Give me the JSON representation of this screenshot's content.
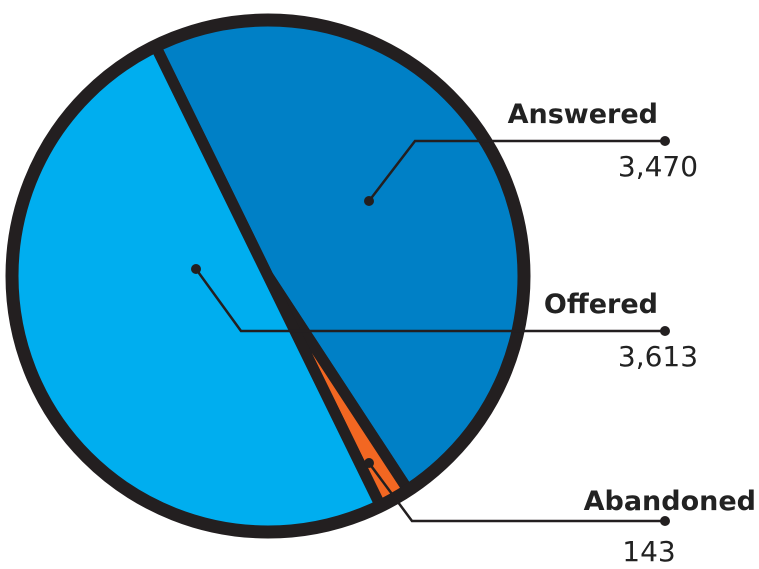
{
  "chart_data": {
    "type": "pie",
    "title": "",
    "slices": [
      {
        "label": "Answered",
        "value": 3470,
        "value_label": "3,470",
        "color": "#0080C6"
      },
      {
        "label": "Abandoned",
        "value": 143,
        "value_label": "143",
        "color": "#F26722"
      },
      {
        "label": "Offered",
        "value": 3613,
        "value_label": "3,613",
        "color": "#00AEEF"
      }
    ],
    "outline_color": "#231F20",
    "legend": "callouts-right"
  }
}
